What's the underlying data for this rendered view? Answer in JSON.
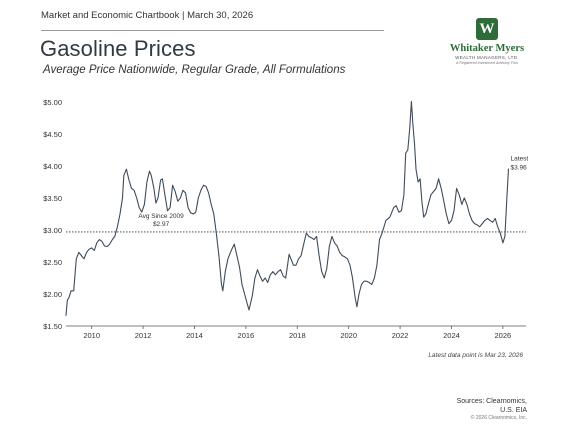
{
  "header": {
    "chartbook_line": "Market and Economic Chartbook | March 30, 2026"
  },
  "title": "Gasoline Prices",
  "subtitle": "Average Price Nationwide, Regular Grade, All Formulations",
  "logo": {
    "mark": "W",
    "name": "Whitaker Myers",
    "line1": "WEALTH MANAGERS, LTD.",
    "line2": "A Registered Investment Advisory Firm"
  },
  "footnote": "Latest data point is Mar 23, 2026",
  "sources": {
    "line1": "Sources: Clearnomics,",
    "line2": "U.S. EIA"
  },
  "copyright": "© 2026 Clearnomics, Inc.",
  "colors": {
    "line": "#3d4c5a",
    "axis": "#555555",
    "avg_line": "#333333"
  },
  "chart_data": {
    "type": "line",
    "x_unit": "year",
    "xlim": [
      2009.0,
      2026.9
    ],
    "ylim": [
      1.5,
      5.0
    ],
    "yticks": [
      1.5,
      2.0,
      2.5,
      3.0,
      3.5,
      4.0,
      4.5,
      5.0
    ],
    "ytick_labels": [
      "$1.50",
      "$2.00",
      "$2.50",
      "$3.00",
      "$3.50",
      "$4.00",
      "$4.50",
      "$5.00"
    ],
    "xticks": [
      2010,
      2012,
      2014,
      2016,
      2018,
      2020,
      2022,
      2024,
      2026
    ],
    "xtick_labels": [
      "2010",
      "2012",
      "2014",
      "2016",
      "2018",
      "2020",
      "2022",
      "2024",
      "2026"
    ],
    "grid": false,
    "average": {
      "value": 2.97,
      "label_line1": "Avg Since 2009",
      "label_line2": "$2.97"
    },
    "latest": {
      "value": 3.96,
      "label_line1": "Latest",
      "label_line2": "$3.96"
    },
    "series": [
      {
        "x": [
          2009.0,
          2009.05,
          2009.12,
          2009.2,
          2009.3,
          2009.4,
          2009.5,
          2009.6,
          2009.7,
          2009.8,
          2009.9,
          2010.0,
          2010.1,
          2010.2,
          2010.3,
          2010.4,
          2010.5,
          2010.6,
          2010.7,
          2010.8,
          2010.9,
          2011.0,
          2011.1,
          2011.2,
          2011.25,
          2011.35,
          2011.45,
          2011.55,
          2011.65,
          2011.75,
          2011.85,
          2011.95,
          2012.05,
          2012.15,
          2012.25,
          2012.32,
          2012.42,
          2012.5,
          2012.58,
          2012.68,
          2012.75,
          2012.85,
          2012.95,
          2013.05,
          2013.15,
          2013.25,
          2013.35,
          2013.45,
          2013.55,
          2013.65,
          2013.75,
          2013.85,
          2013.95,
          2014.05,
          2014.15,
          2014.25,
          2014.35,
          2014.45,
          2014.55,
          2014.65,
          2014.75,
          2014.85,
          2014.95,
          2015.05,
          2015.1,
          2015.2,
          2015.3,
          2015.45,
          2015.55,
          2015.65,
          2015.75,
          2015.85,
          2015.95,
          2016.05,
          2016.12,
          2016.25,
          2016.35,
          2016.45,
          2016.55,
          2016.65,
          2016.75,
          2016.85,
          2016.95,
          2017.05,
          2017.15,
          2017.25,
          2017.35,
          2017.45,
          2017.55,
          2017.68,
          2017.75,
          2017.85,
          2017.95,
          2018.05,
          2018.15,
          2018.25,
          2018.35,
          2018.45,
          2018.55,
          2018.65,
          2018.75,
          2018.85,
          2018.95,
          2019.05,
          2019.15,
          2019.25,
          2019.35,
          2019.45,
          2019.55,
          2019.65,
          2019.75,
          2019.85,
          2019.95,
          2020.05,
          2020.15,
          2020.25,
          2020.32,
          2020.4,
          2020.5,
          2020.6,
          2020.7,
          2020.8,
          2020.9,
          2021.0,
          2021.1,
          2021.2,
          2021.3,
          2021.45,
          2021.6,
          2021.75,
          2021.85,
          2021.95,
          2022.05,
          2022.15,
          2022.22,
          2022.3,
          2022.38,
          2022.44,
          2022.5,
          2022.56,
          2022.62,
          2022.7,
          2022.78,
          2022.85,
          2022.92,
          2023.0,
          2023.1,
          2023.2,
          2023.3,
          2023.4,
          2023.5,
          2023.6,
          2023.7,
          2023.8,
          2023.9,
          2024.0,
          2024.1,
          2024.2,
          2024.3,
          2024.4,
          2024.5,
          2024.6,
          2024.7,
          2024.8,
          2024.9,
          2025.0,
          2025.1,
          2025.2,
          2025.3,
          2025.4,
          2025.5,
          2025.6,
          2025.7,
          2025.8,
          2025.9,
          2026.0,
          2026.08,
          2026.15,
          2026.22
        ],
        "values": [
          1.66,
          1.9,
          1.95,
          2.05,
          2.05,
          2.55,
          2.65,
          2.6,
          2.55,
          2.65,
          2.7,
          2.72,
          2.68,
          2.8,
          2.85,
          2.82,
          2.75,
          2.74,
          2.78,
          2.85,
          2.9,
          3.05,
          3.25,
          3.5,
          3.85,
          3.95,
          3.78,
          3.65,
          3.62,
          3.5,
          3.35,
          3.28,
          3.4,
          3.75,
          3.92,
          3.85,
          3.65,
          3.42,
          3.5,
          3.78,
          3.8,
          3.55,
          3.3,
          3.35,
          3.7,
          3.6,
          3.45,
          3.5,
          3.62,
          3.58,
          3.35,
          3.27,
          3.25,
          3.28,
          3.5,
          3.62,
          3.7,
          3.68,
          3.58,
          3.4,
          3.25,
          2.95,
          2.6,
          2.15,
          2.05,
          2.35,
          2.55,
          2.7,
          2.78,
          2.6,
          2.42,
          2.15,
          2.0,
          1.85,
          1.75,
          1.97,
          2.25,
          2.38,
          2.28,
          2.2,
          2.25,
          2.18,
          2.3,
          2.35,
          2.3,
          2.35,
          2.38,
          2.28,
          2.25,
          2.62,
          2.55,
          2.45,
          2.45,
          2.55,
          2.6,
          2.78,
          2.95,
          2.9,
          2.88,
          2.85,
          2.9,
          2.6,
          2.35,
          2.25,
          2.4,
          2.75,
          2.9,
          2.8,
          2.75,
          2.65,
          2.6,
          2.58,
          2.55,
          2.45,
          2.25,
          1.95,
          1.8,
          2.0,
          2.15,
          2.2,
          2.2,
          2.18,
          2.15,
          2.25,
          2.45,
          2.85,
          2.95,
          3.15,
          3.2,
          3.35,
          3.38,
          3.28,
          3.3,
          3.55,
          4.2,
          4.25,
          4.6,
          5.01,
          4.65,
          4.35,
          3.95,
          3.75,
          3.8,
          3.45,
          3.2,
          3.25,
          3.4,
          3.55,
          3.6,
          3.65,
          3.8,
          3.65,
          3.45,
          3.25,
          3.1,
          3.15,
          3.3,
          3.65,
          3.55,
          3.4,
          3.5,
          3.4,
          3.25,
          3.15,
          3.1,
          3.08,
          3.05,
          3.1,
          3.15,
          3.18,
          3.15,
          3.12,
          3.18,
          3.05,
          2.95,
          2.8,
          2.9,
          3.45,
          3.96
        ]
      }
    ]
  }
}
